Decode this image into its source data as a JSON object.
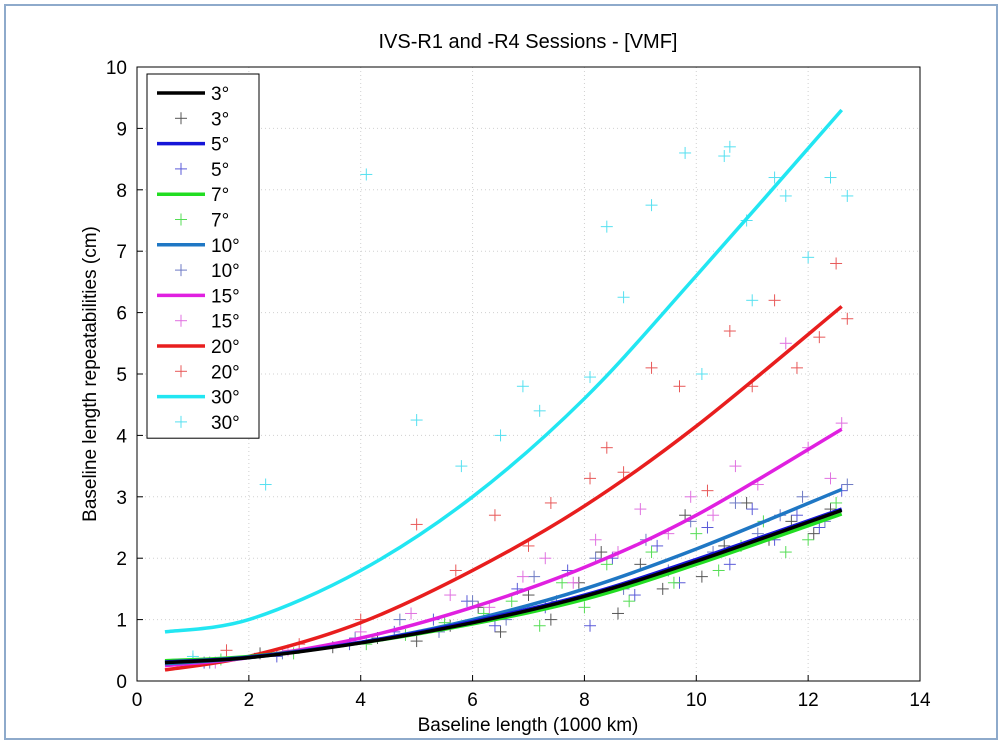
{
  "chart_data": {
    "type": "line",
    "title": "IVS-R1 and -R4 Sessions   -  [VMF]",
    "xlabel": "Baseline length (1000 km)",
    "ylabel": "Baseline length repeatabilities (cm)",
    "xlim": [
      0,
      14
    ],
    "ylim": [
      0,
      10
    ],
    "xticks": [
      "0",
      "2",
      "4",
      "6",
      "8",
      "10",
      "12",
      "14"
    ],
    "yticks": [
      "0",
      "1",
      "2",
      "3",
      "4",
      "5",
      "6",
      "7",
      "8",
      "9",
      "10"
    ],
    "grid": true,
    "legend_position": "top-left",
    "series": [
      {
        "name": "3°",
        "kind": "line",
        "color": "#000000",
        "x": [
          0.5,
          2,
          4,
          6,
          8,
          10,
          12.6
        ],
        "y": [
          0.3,
          0.38,
          0.62,
          0.95,
          1.38,
          1.95,
          2.78
        ]
      },
      {
        "name": "3°",
        "kind": "scatter",
        "color": "#555555",
        "x": [
          1.0,
          2.2,
          3.5,
          4.3,
          5.0,
          5.6,
          6.1,
          6.5,
          7.0,
          7.4,
          7.9,
          8.3,
          8.6,
          9.0,
          9.4,
          9.8,
          10.1,
          10.5,
          10.9,
          11.3,
          11.7,
          12.1,
          12.4
        ],
        "y": [
          0.35,
          0.45,
          0.55,
          0.7,
          0.65,
          0.9,
          1.2,
          0.8,
          1.4,
          1.0,
          1.6,
          2.1,
          1.1,
          1.9,
          1.5,
          2.7,
          1.7,
          2.2,
          2.9,
          2.3,
          2.6,
          2.4,
          2.8
        ]
      },
      {
        "name": "5°",
        "kind": "line",
        "color": "#1515d8",
        "x": [
          0.5,
          2,
          4,
          6,
          8,
          10,
          12.6
        ],
        "y": [
          0.31,
          0.39,
          0.63,
          0.97,
          1.4,
          1.98,
          2.8
        ]
      },
      {
        "name": "5°",
        "kind": "scatter",
        "color": "#5a5ad8",
        "x": [
          1.2,
          2.5,
          3.8,
          4.6,
          5.3,
          5.9,
          6.4,
          6.8,
          7.3,
          7.7,
          8.1,
          8.5,
          8.9,
          9.3,
          9.7,
          10.2,
          10.6,
          11.0,
          11.4,
          11.8,
          12.2,
          12.6
        ],
        "y": [
          0.3,
          0.4,
          0.6,
          0.8,
          1.0,
          1.3,
          0.9,
          1.5,
          1.2,
          1.8,
          0.9,
          2.0,
          1.4,
          2.2,
          1.6,
          2.5,
          1.9,
          2.8,
          2.3,
          2.7,
          2.5,
          3.1
        ]
      },
      {
        "name": "7°",
        "kind": "line",
        "color": "#22dd22",
        "x": [
          0.5,
          2,
          4,
          6,
          8,
          10,
          12.6
        ],
        "y": [
          0.33,
          0.4,
          0.62,
          0.93,
          1.33,
          1.9,
          2.72
        ]
      },
      {
        "name": "7°",
        "kind": "scatter",
        "color": "#55dd55",
        "x": [
          1.5,
          2.8,
          4.1,
          4.8,
          5.5,
          6.2,
          6.7,
          7.2,
          7.6,
          8.0,
          8.4,
          8.8,
          9.2,
          9.6,
          10.0,
          10.4,
          10.8,
          11.2,
          11.6,
          12.0,
          12.5
        ],
        "y": [
          0.35,
          0.45,
          0.6,
          0.75,
          0.95,
          1.1,
          1.3,
          0.9,
          1.6,
          1.2,
          1.9,
          1.3,
          2.1,
          1.6,
          2.4,
          1.8,
          2.2,
          2.6,
          2.1,
          2.3,
          2.9
        ]
      },
      {
        "name": "10°",
        "kind": "line",
        "color": "#1f77c4",
        "x": [
          0.5,
          2,
          4,
          6,
          8,
          10,
          12.6
        ],
        "y": [
          0.28,
          0.38,
          0.63,
          1.0,
          1.5,
          2.15,
          3.12
        ]
      },
      {
        "name": "10°",
        "kind": "scatter",
        "color": "#6d7ac4",
        "x": [
          1.3,
          2.6,
          3.9,
          4.7,
          5.4,
          6.0,
          6.6,
          7.1,
          7.5,
          8.2,
          8.7,
          9.1,
          9.5,
          9.9,
          10.3,
          10.7,
          11.1,
          11.5,
          11.9,
          12.3,
          12.7
        ],
        "y": [
          0.3,
          0.45,
          0.7,
          1.0,
          0.8,
          1.3,
          1.0,
          1.7,
          1.3,
          2.0,
          1.5,
          2.3,
          1.8,
          2.6,
          2.1,
          2.9,
          2.4,
          2.7,
          3.0,
          2.6,
          3.2
        ]
      },
      {
        "name": "15°",
        "kind": "line",
        "color": "#e020e0",
        "x": [
          0.5,
          2,
          4,
          6,
          8,
          10,
          12.6
        ],
        "y": [
          0.25,
          0.38,
          0.7,
          1.2,
          1.85,
          2.7,
          4.1
        ]
      },
      {
        "name": "15°",
        "kind": "scatter",
        "color": "#e070e0",
        "x": [
          1.4,
          2.7,
          4.0,
          4.9,
          5.6,
          6.3,
          6.9,
          7.3,
          7.8,
          8.2,
          8.6,
          9.0,
          9.5,
          9.9,
          10.3,
          10.7,
          11.1,
          11.6,
          12.0,
          12.4,
          12.6
        ],
        "y": [
          0.3,
          0.5,
          0.8,
          1.1,
          1.4,
          1.2,
          1.7,
          2.0,
          1.6,
          2.3,
          2.1,
          2.8,
          2.4,
          3.0,
          2.7,
          3.5,
          3.2,
          5.5,
          3.8,
          3.3,
          4.2
        ]
      },
      {
        "name": "20°",
        "kind": "line",
        "color": "#e81e1e",
        "x": [
          0.5,
          2,
          4,
          6,
          8,
          10,
          12.6
        ],
        "y": [
          0.18,
          0.4,
          0.95,
          1.8,
          2.85,
          4.15,
          6.1
        ]
      },
      {
        "name": "20°",
        "kind": "scatter",
        "color": "#e85858",
        "x": [
          1.6,
          2.9,
          4.0,
          5.0,
          5.7,
          6.4,
          7.0,
          7.4,
          8.1,
          8.4,
          8.7,
          9.2,
          9.7,
          10.2,
          10.6,
          11.0,
          11.4,
          11.8,
          12.2,
          12.5,
          12.7
        ],
        "y": [
          0.5,
          0.6,
          1.0,
          2.55,
          1.8,
          2.7,
          2.2,
          2.9,
          3.3,
          3.8,
          3.4,
          5.1,
          4.8,
          3.1,
          5.7,
          4.8,
          6.2,
          5.1,
          5.6,
          6.8,
          5.9
        ]
      },
      {
        "name": "30°",
        "kind": "line",
        "color": "#22e6f2",
        "x": [
          0.5,
          2,
          4,
          6,
          8,
          10,
          12.6
        ],
        "y": [
          0.8,
          1.0,
          1.8,
          3.0,
          4.6,
          6.6,
          9.3
        ]
      },
      {
        "name": "30°",
        "kind": "scatter",
        "color": "#55e0f0",
        "x": [
          1.0,
          2.3,
          4.1,
          5.0,
          5.8,
          6.5,
          6.9,
          7.2,
          8.1,
          8.4,
          8.7,
          9.2,
          9.8,
          10.1,
          10.5,
          10.6,
          10.9,
          11.0,
          11.4,
          11.6,
          12.0,
          12.4,
          12.7
        ],
        "y": [
          0.4,
          3.2,
          8.25,
          4.25,
          3.5,
          4.0,
          4.8,
          4.4,
          4.95,
          7.4,
          6.25,
          7.75,
          8.6,
          5.0,
          8.55,
          8.7,
          7.5,
          6.2,
          8.2,
          7.9,
          6.9,
          8.2,
          7.9
        ]
      }
    ]
  }
}
